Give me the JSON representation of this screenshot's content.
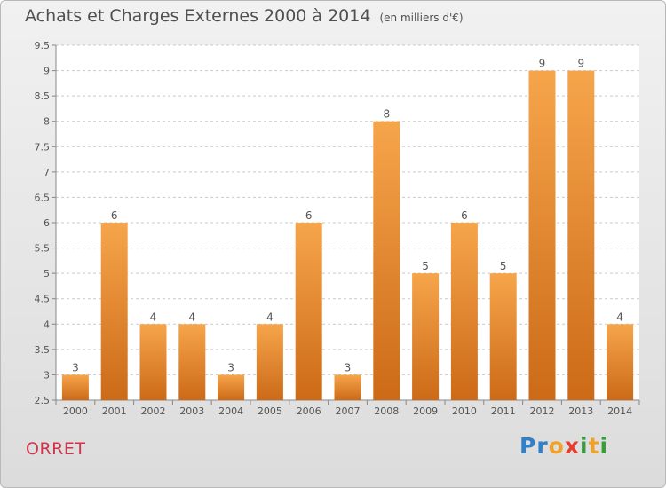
{
  "header": {
    "title": "Achats et Charges Externes 2000 à 2014",
    "unit": "(en milliers d'€)"
  },
  "footer": {
    "commune": "ORRET",
    "logo_text": "Proxiti",
    "logo_letters": [
      {
        "ch": "P",
        "color": "#2f7fc9"
      },
      {
        "ch": "r",
        "color": "#2f7fc9"
      },
      {
        "ch": "o",
        "color": "#f0a12a"
      },
      {
        "ch": "x",
        "color": "#e53d2e"
      },
      {
        "ch": "i",
        "color": "#3b9a3d"
      },
      {
        "ch": "t",
        "color": "#f0a12a"
      },
      {
        "ch": "i",
        "color": "#3b9a3d"
      }
    ]
  },
  "colors": {
    "bar_top": "#f6a54b",
    "bar_bottom": "#cc6a17",
    "grid": "#c9c9c9",
    "axis_text": "#555555"
  },
  "chart_data": {
    "type": "bar",
    "title": "Achats et Charges Externes 2000 à 2014",
    "subtitle": "(en milliers d'€)",
    "xlabel": "",
    "ylabel": "",
    "categories": [
      "2000",
      "2001",
      "2002",
      "2003",
      "2004",
      "2005",
      "2006",
      "2007",
      "2008",
      "2009",
      "2010",
      "2011",
      "2012",
      "2013",
      "2014"
    ],
    "values": [
      3,
      6,
      4,
      4,
      3,
      4,
      6,
      3,
      8,
      5,
      6,
      5,
      9,
      9,
      4
    ],
    "ylim": [
      2.5,
      9.5
    ],
    "yticks": [
      "2.5",
      "3",
      "3.5",
      "4",
      "4.5",
      "5",
      "5.5",
      "6",
      "6.5",
      "7",
      "7.5",
      "8",
      "8.5",
      "9",
      "9.5"
    ],
    "grid": "dashed horizontal",
    "legend": "none",
    "data_labels": true
  }
}
